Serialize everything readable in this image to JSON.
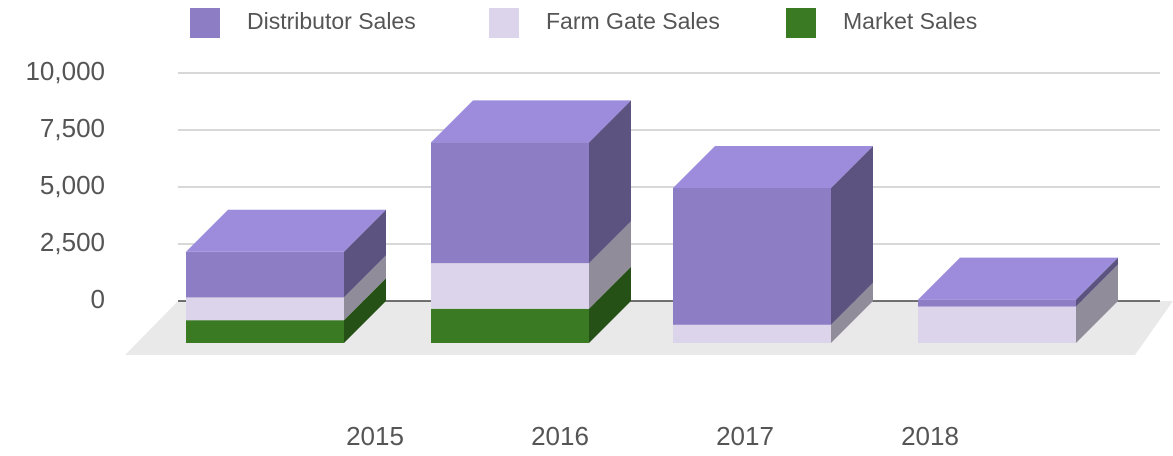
{
  "chart_data": {
    "type": "bar3d_stacked",
    "categories": [
      "2015",
      "2016",
      "2017",
      "2018"
    ],
    "series": [
      {
        "name": "Distributor Sales",
        "color": "#8c7dc4",
        "values": [
          2000,
          5300,
          6000,
          300
        ]
      },
      {
        "name": "Farm Gate Sales",
        "color": "#dcd4ea",
        "values": [
          1000,
          2000,
          800,
          1600
        ]
      },
      {
        "name": "Market Sales",
        "color": "#3a7a22",
        "values": [
          1000,
          1500,
          0,
          0
        ]
      }
    ],
    "ylim": [
      0,
      10000
    ],
    "yticks": [
      {
        "value": 0,
        "label": "0"
      },
      {
        "value": 2500,
        "label": "2,500"
      },
      {
        "value": 5000,
        "label": "5,000"
      },
      {
        "value": 7500,
        "label": "7,500"
      },
      {
        "value": 10000,
        "label": "10,000"
      }
    ],
    "grid": true,
    "legend": "top"
  }
}
